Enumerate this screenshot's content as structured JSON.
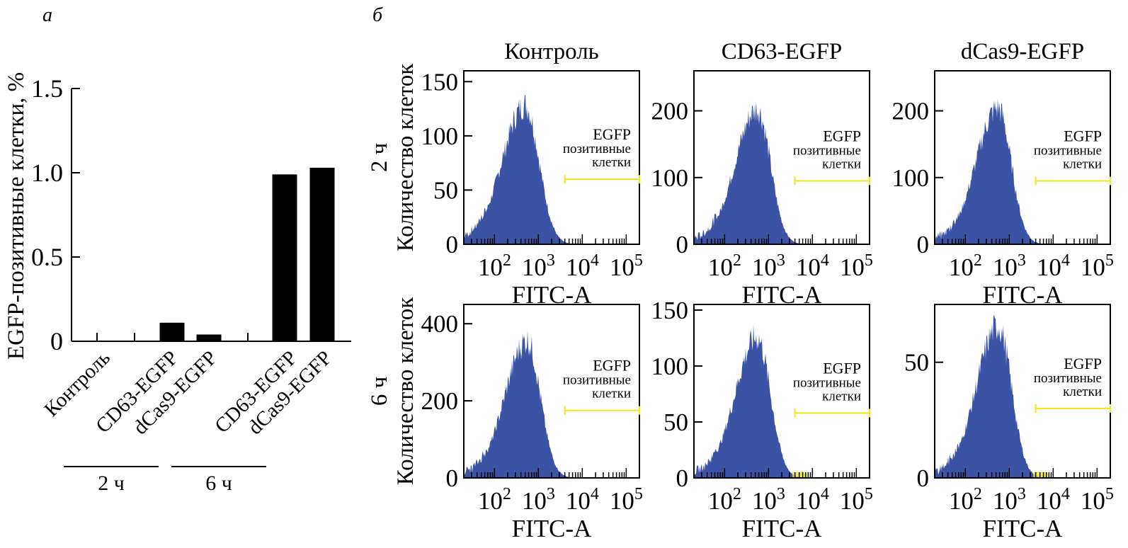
{
  "panel_labels": {
    "a": "а",
    "b": "б"
  },
  "chart_data": [
    {
      "type": "bar",
      "panel": "а",
      "title": "",
      "xlabel": "",
      "ylabel": "EGFP-позитивные клетки, %",
      "ylim": [
        0,
        1.5
      ],
      "yticks": [
        0,
        0.5,
        1.0,
        1.5
      ],
      "ytick_labels": [
        "0",
        "0.5",
        "1.0",
        "1.5"
      ],
      "categories": [
        "Контроль",
        "CD63-EGFP",
        "dCas9-EGFP",
        "CD63-EGFP",
        "dCas9-EGFP"
      ],
      "groups": [
        {
          "label": "2 ч",
          "members": [
            0,
            1,
            2
          ]
        },
        {
          "label": "6 ч",
          "members": [
            3,
            4
          ]
        }
      ],
      "values": [
        0.0,
        0.11,
        0.04,
        0.99,
        1.03
      ],
      "bar_color": "#000000",
      "grid": false
    },
    {
      "type": "area",
      "panel": "б",
      "layout": "grid 2x3",
      "column_titles": [
        "Контроль",
        "CD63-EGFP",
        "dCas9-EGFP"
      ],
      "row_labels": [
        "2 ч",
        "6 ч"
      ],
      "ylabel": "Количество клеток",
      "xlabel": "FITC-A",
      "xscale": "log",
      "xlim": [
        20,
        200000
      ],
      "xticks": [
        100,
        1000,
        10000,
        100000
      ],
      "xtick_labels": [
        "10^2",
        "10^3",
        "10^4",
        "10^5"
      ],
      "gate_label": [
        "EGFP",
        "позитивные",
        "клетки"
      ],
      "gate_range": [
        4000,
        200000
      ],
      "fill_color": "#3b53a4",
      "gate_color": "#f2e61b",
      "plots": [
        {
          "row": 0,
          "col": 0,
          "ylim": [
            0,
            160
          ],
          "yticks": [
            0,
            50,
            100,
            150
          ],
          "peak_x": 500,
          "peak_y": 135,
          "width_decades": 0.42,
          "gate_y": 60,
          "positive_events": false
        },
        {
          "row": 0,
          "col": 1,
          "ylim": [
            0,
            260
          ],
          "yticks": [
            0,
            100,
            200
          ],
          "peak_x": 550,
          "peak_y": 213,
          "width_decades": 0.4,
          "gate_y": 95,
          "positive_events": false
        },
        {
          "row": 0,
          "col": 2,
          "ylim": [
            0,
            260
          ],
          "yticks": [
            0,
            100,
            200
          ],
          "peak_x": 550,
          "peak_y": 215,
          "width_decades": 0.4,
          "gate_y": 95,
          "positive_events": false
        },
        {
          "row": 1,
          "col": 0,
          "ylim": [
            0,
            450
          ],
          "yticks": [
            0,
            200,
            400
          ],
          "peak_x": 550,
          "peak_y": 375,
          "width_decades": 0.4,
          "gate_y": 175,
          "positive_events": false
        },
        {
          "row": 1,
          "col": 1,
          "ylim": [
            0,
            155
          ],
          "yticks": [
            0,
            50,
            100,
            150
          ],
          "peak_x": 550,
          "peak_y": 132,
          "width_decades": 0.4,
          "gate_y": 58,
          "positive_events": true
        },
        {
          "row": 1,
          "col": 2,
          "ylim": [
            0,
            75
          ],
          "yticks": [
            0,
            50
          ],
          "peak_x": 560,
          "peak_y": 69,
          "width_decades": 0.4,
          "gate_y": 30,
          "positive_events": true
        }
      ]
    }
  ]
}
